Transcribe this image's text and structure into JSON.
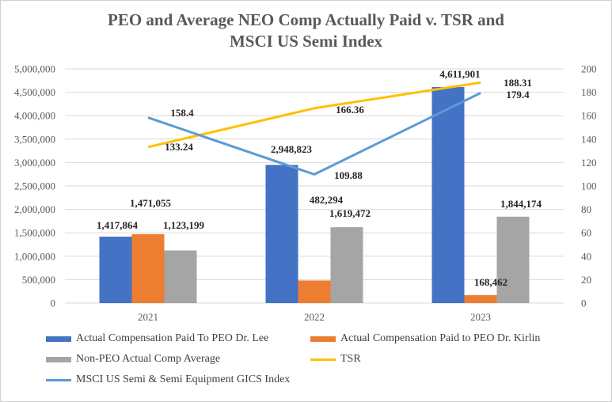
{
  "colors": {
    "lee": "#4472C4",
    "kirlin": "#ED7D31",
    "neo": "#A5A5A5",
    "tsr": "#FFC000",
    "msci": "#5B9BD5",
    "grid": "#D9D9D9",
    "axis_text": "#595959"
  },
  "chart_data": {
    "type": "bar",
    "title_line1": "PEO and Average NEO Comp Actually Paid v. TSR and",
    "title_line2": "MSCI US Semi Index",
    "categories": [
      "2021",
      "2022",
      "2023"
    ],
    "y_left": {
      "min": 0,
      "max": 5000000,
      "step": 500000,
      "ticks": [
        "0",
        "500,000",
        "1,000,000",
        "1,500,000",
        "2,000,000",
        "2,500,000",
        "3,000,000",
        "3,500,000",
        "4,000,000",
        "4,500,000",
        "5,000,000"
      ]
    },
    "y_right": {
      "min": 0,
      "max": 200,
      "step": 20,
      "ticks": [
        "0",
        "20",
        "40",
        "60",
        "80",
        "100",
        "120",
        "140",
        "160",
        "180",
        "200"
      ]
    },
    "bar_series": [
      {
        "key": "lee",
        "name": "Actual Compensation Paid To PEO Dr. Lee",
        "values": [
          1417864,
          2948823,
          4611901
        ],
        "labels": [
          "1,417,864",
          "2,948,823",
          "4,611,901"
        ]
      },
      {
        "key": "kirlin",
        "name": "Actual Compensation Paid to PEO Dr. Kirlin",
        "values": [
          1471055,
          482294,
          168462
        ],
        "labels": [
          "1,471,055",
          "482,294",
          "168,462"
        ]
      },
      {
        "key": "neo",
        "name": "Non-PEO Actual Comp Average",
        "values": [
          1123199,
          1619472,
          1844174
        ],
        "labels": [
          "1,123,199",
          "1,619,472",
          "1,844,174"
        ]
      }
    ],
    "line_series": [
      {
        "key": "tsr",
        "name": "TSR",
        "axis": "right",
        "values": [
          133.24,
          166.36,
          188.31
        ],
        "labels": [
          "133.24",
          "166.36",
          "188.31"
        ]
      },
      {
        "key": "msci",
        "name": "MSCI US Semi & Semi Equipment GICS Index",
        "axis": "right",
        "values": [
          158.4,
          109.88,
          179.4
        ],
        "labels": [
          "158.4",
          "109.88",
          "179.4"
        ]
      }
    ],
    "legend_position": "bottom",
    "gridlines": true
  },
  "legend": {
    "lee": "Actual Compensation Paid To PEO Dr. Lee",
    "kirlin": "Actual Compensation Paid to PEO Dr. Kirlin",
    "neo": "Non-PEO Actual Comp Average",
    "tsr": "TSR",
    "msci": "MSCI US Semi & Semi Equipment GICS Index"
  }
}
